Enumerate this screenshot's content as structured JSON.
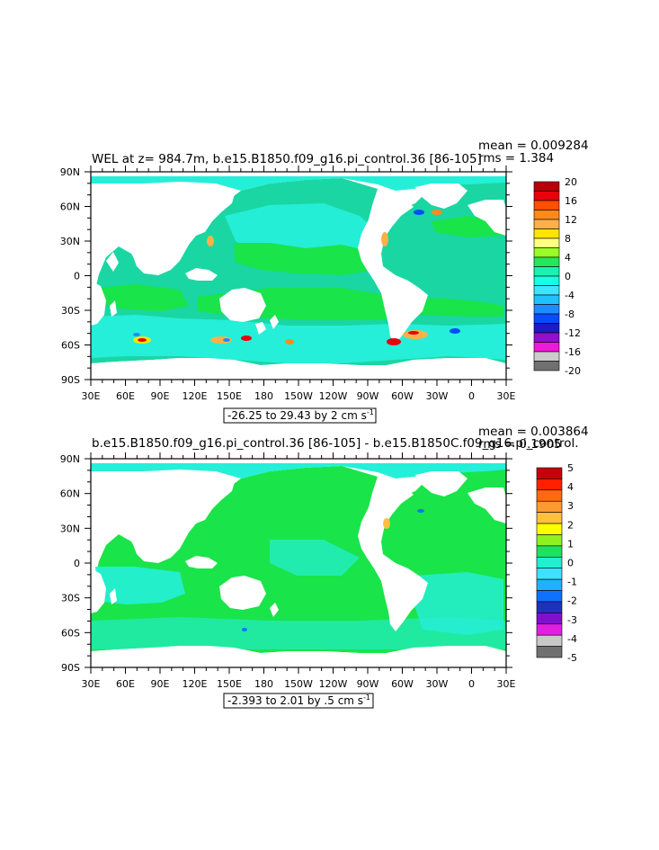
{
  "panels": [
    {
      "title": "WEL at z= 984.7m, b.e15.B1850.f09_g16.pi_control.36 [86-105]",
      "mean_label": "mean = 0.009284",
      "rms_label": "rms = 1.384",
      "range_label": "-26.25 to 29.43 by 2 cm s",
      "range_exp": "-1",
      "colorbar": {
        "labels": [
          "20",
          "16",
          "12",
          "8",
          "4",
          "0",
          "-4",
          "-8",
          "-12",
          "-16",
          "-20"
        ],
        "colors": [
          "#b8000a",
          "#e8000b",
          "#ff4f00",
          "#ff8a1a",
          "#ffb04a",
          "#ffe400",
          "#ffff80",
          "#9afc26",
          "#25e75a",
          "#19f3b0",
          "#15ffe4",
          "#38e8ff",
          "#1ec2ff",
          "#1e8cff",
          "#0a4bff",
          "#1b1bc8",
          "#8e10d0",
          "#f019d8",
          "#cccccc",
          "#707070"
        ]
      }
    },
    {
      "title": "b.e15.B1850.f09_g16.pi_control.36 [86-105] - b.e15.B1850C.f09_g16.pi_control.",
      "mean_label": "mean = 0.003864",
      "rms_label": "rms = 0.1905",
      "range_label": "-2.393 to 2.01 by .5 cm s",
      "range_exp": "-1",
      "colorbar": {
        "labels": [
          "5",
          "4",
          "3",
          "2",
          "1",
          "0",
          "-1",
          "-2",
          "-3",
          "-4",
          "-5"
        ],
        "colors": [
          "#c8000a",
          "#ff2000",
          "#ff6a10",
          "#ff9a30",
          "#ffc040",
          "#ffff00",
          "#90f020",
          "#20e060",
          "#20f0d0",
          "#40e0ff",
          "#20b0ff",
          "#1070ff",
          "#2030c0",
          "#8010d0",
          "#e020e0",
          "#c8c8c8",
          "#707070"
        ]
      }
    }
  ],
  "lat_labels": [
    "90N",
    "60N",
    "30N",
    "0",
    "30S",
    "60S",
    "90S"
  ],
  "lon_labels": [
    "30E",
    "60E",
    "90E",
    "120E",
    "150E",
    "180",
    "150W",
    "120W",
    "90W",
    "60W",
    "30W",
    "0",
    "30E"
  ],
  "palette": {
    "ocean_main": "#1ad6a2",
    "ocean_green": "#19e44a",
    "ocean_cyan": "#25efd8",
    "land": "#ffffff"
  },
  "map_data": {
    "projection": "cylindrical equidistant",
    "lon_range": [
      30,
      390
    ],
    "lat_range": [
      -90,
      90
    ]
  }
}
